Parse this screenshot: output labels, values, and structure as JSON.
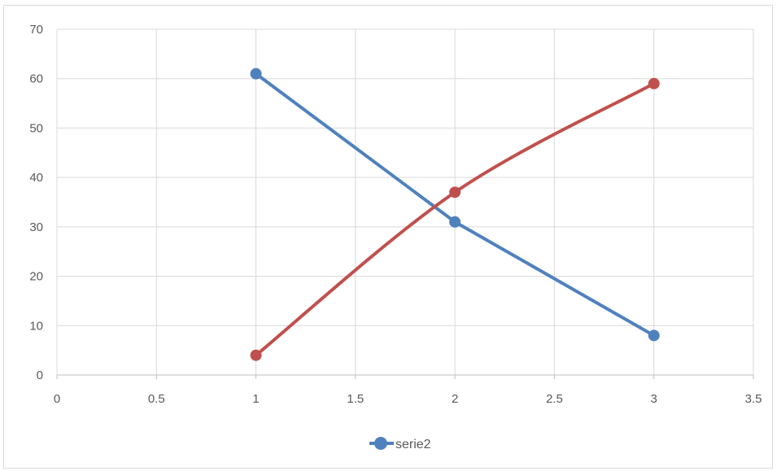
{
  "chart_data": {
    "type": "scatter",
    "title": "",
    "xlabel": "",
    "ylabel": "",
    "xlim": [
      0,
      3.5
    ],
    "ylim": [
      0,
      70
    ],
    "x_ticks": [
      "0",
      "0.5",
      "1",
      "1.5",
      "2",
      "2.5",
      "3",
      "3.5"
    ],
    "y_ticks": [
      "0",
      "10",
      "20",
      "30",
      "40",
      "50",
      "60",
      "70"
    ],
    "grid": true,
    "legend_position": "bottom",
    "series": [
      {
        "legend_label": "serie2",
        "color": "#4f81bd",
        "line": "straight",
        "marker": "circle",
        "points": [
          {
            "x": 1,
            "y": 61
          },
          {
            "x": 2,
            "y": 31
          },
          {
            "x": 3,
            "y": 8
          }
        ]
      },
      {
        "color": "#c0504d",
        "line": "smooth",
        "marker": "circle",
        "points": [
          {
            "x": 1,
            "y": 4
          },
          {
            "x": 2,
            "y": 37
          },
          {
            "x": 3,
            "y": 59
          }
        ]
      }
    ]
  }
}
